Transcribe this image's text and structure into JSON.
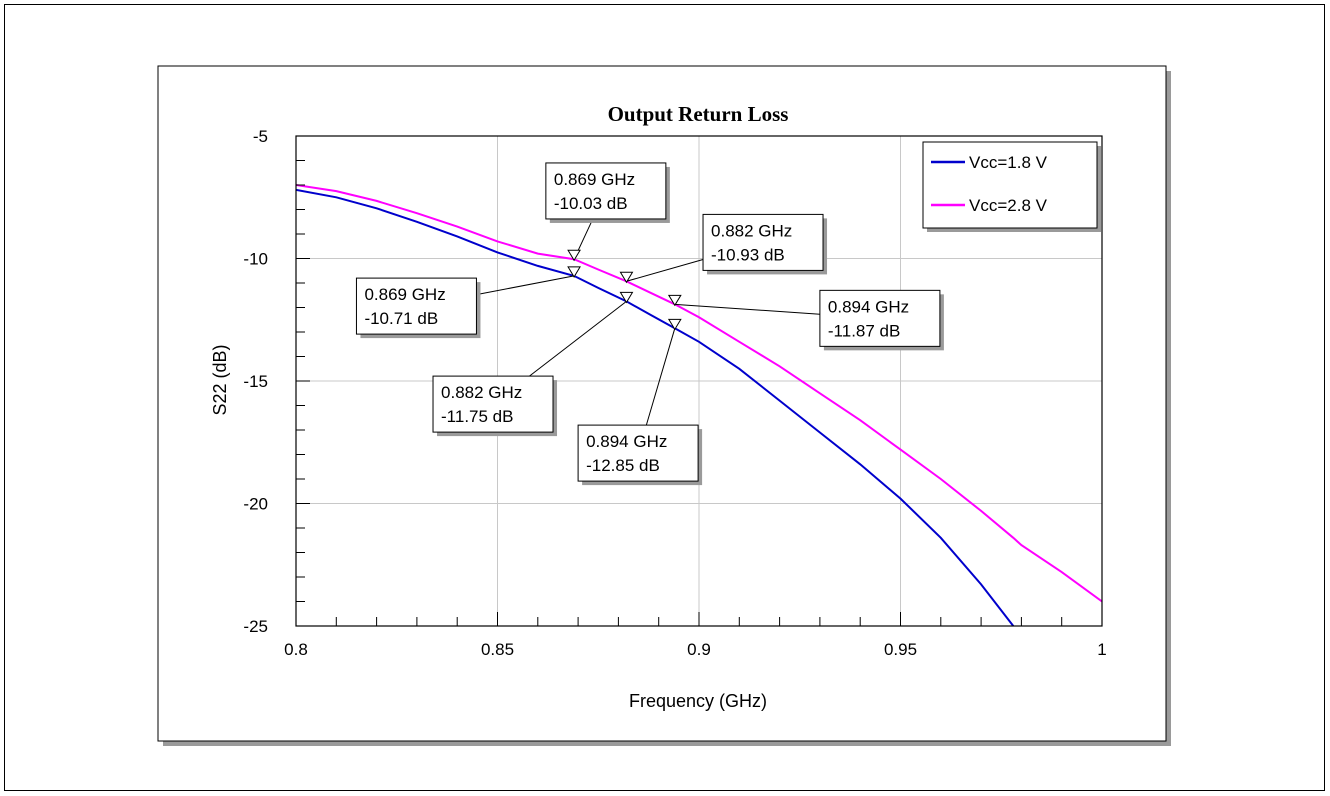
{
  "chart_data": {
    "type": "line",
    "title": "Output Return Loss",
    "xlabel": "Frequency (GHz)",
    "ylabel": "S22 (dB)",
    "xlim": [
      0.8,
      1.0
    ],
    "ylim": [
      -25,
      -5
    ],
    "x_ticks": [
      0.8,
      0.85,
      0.9,
      0.95,
      1.0
    ],
    "x_tick_labels": [
      "0.8",
      "0.85",
      "0.9",
      "0.95",
      "1"
    ],
    "y_ticks": [
      -5,
      -10,
      -15,
      -20,
      -25
    ],
    "y_tick_labels": [
      "-5",
      "-10",
      "-15",
      "-20",
      "-25"
    ],
    "grid": true,
    "legend_position": "top-right",
    "x": [
      0.8,
      0.81,
      0.82,
      0.83,
      0.84,
      0.85,
      0.86,
      0.869,
      0.875,
      0.882,
      0.888,
      0.894,
      0.9,
      0.91,
      0.92,
      0.93,
      0.94,
      0.95,
      0.96,
      0.97,
      0.978,
      0.98,
      0.99,
      1.0
    ],
    "series": [
      {
        "name": "Vcc=1.8 V",
        "color": "#0000cc",
        "values": [
          -7.2,
          -7.5,
          -7.95,
          -8.5,
          -9.1,
          -9.75,
          -10.3,
          -10.71,
          -11.2,
          -11.75,
          -12.3,
          -12.85,
          -13.4,
          -14.5,
          -15.8,
          -17.1,
          -18.4,
          -19.8,
          -21.4,
          -23.3,
          -25.0,
          null,
          null,
          null
        ]
      },
      {
        "name": "Vcc=2.8 V",
        "color": "#ff00ff",
        "values": [
          -7.0,
          -7.25,
          -7.65,
          -8.15,
          -8.7,
          -9.3,
          -9.8,
          -10.03,
          -10.45,
          -10.93,
          -11.4,
          -11.87,
          -12.4,
          -13.4,
          -14.4,
          -15.5,
          -16.6,
          -17.8,
          -19.0,
          -20.3,
          -21.4,
          -21.7,
          -22.8,
          -24.0
        ]
      }
    ],
    "annotations": [
      {
        "series": "Vcc=2.8 V",
        "x": 0.869,
        "y": -10.03,
        "line1": "0.869 GHz",
        "line2": "-10.03 dB",
        "box_x": 0.862,
        "box_y": -6.1
      },
      {
        "series": "Vcc=1.8 V",
        "x": 0.869,
        "y": -10.71,
        "line1": "0.869 GHz",
        "line2": "-10.71 dB",
        "box_x": 0.815,
        "box_y": -10.8
      },
      {
        "series": "Vcc=2.8 V",
        "x": 0.882,
        "y": -10.93,
        "line1": "0.882 GHz",
        "line2": "-10.93 dB",
        "box_x": 0.901,
        "box_y": -8.2
      },
      {
        "series": "Vcc=1.8 V",
        "x": 0.882,
        "y": -11.75,
        "line1": "0.882 GHz",
        "line2": "-11.75 dB",
        "box_x": 0.834,
        "box_y": -14.8
      },
      {
        "series": "Vcc=2.8 V",
        "x": 0.894,
        "y": -11.87,
        "line1": "0.894 GHz",
        "line2": "-11.87 dB",
        "box_x": 0.93,
        "box_y": -11.3
      },
      {
        "series": "Vcc=1.8 V",
        "x": 0.894,
        "y": -12.85,
        "line1": "0.894 GHz",
        "line2": "-12.85 dB",
        "box_x": 0.87,
        "box_y": -16.8
      }
    ]
  }
}
